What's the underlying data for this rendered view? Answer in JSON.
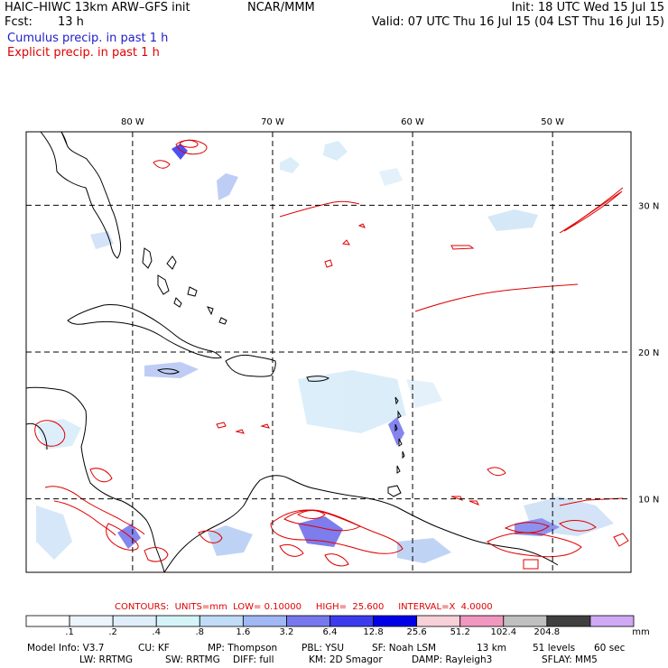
{
  "header": {
    "title_left": "HAIC–HIWC 13km ARW–GFS init",
    "title_org": "NCAR/MMM",
    "init": "Init: 18 UTC Wed 15 Jul 15",
    "fcst_label": "Fcst:",
    "fcst_value": "13 h",
    "valid": "Valid: 07 UTC Thu 16 Jul 15 (04 LST Thu 16 Jul 15)",
    "cumulus_legend": "Cumulus precip. in past 1 h",
    "explicit_legend": "Explicit precip. in past 1 h"
  },
  "map": {
    "lon_labels": [
      "80 W",
      "70 W",
      "60 W",
      "50 W"
    ],
    "lat_labels": [
      "30 N",
      "20 N",
      "10 N"
    ],
    "lon_values": [
      -80,
      -70,
      -60,
      -50
    ],
    "lat_values": [
      30,
      20,
      10
    ],
    "extent": {
      "west": -87.6,
      "east": -44.4,
      "south": 5,
      "north": 35
    },
    "colors": {
      "coast": "#000000",
      "grid": "#000000",
      "explicit": "#e00000"
    }
  },
  "contours": {
    "text": "CONTOURS:  UNITS=mm  LOW= 0.10000     HIGH=  25.600     INTERVAL=X  4.0000"
  },
  "colorbar": {
    "labels": [
      ".1",
      ".2",
      ".4",
      ".8",
      "1.6",
      "3.2",
      "6.4",
      "12.8",
      "25.6",
      "51.2",
      "102.4",
      "204.8"
    ],
    "units": "mm",
    "colors": [
      "#ffffff",
      "#ecf4fc",
      "#e0eefa",
      "#d4f4f8",
      "#c0dcf6",
      "#a0b8f4",
      "#7878ee",
      "#3c3cee",
      "#0000e8",
      "#f8d0d8",
      "#f098c0",
      "#c0c0c0",
      "#404040",
      "#d0a8f4"
    ]
  },
  "footer": {
    "line1": [
      {
        "label": "Model Info: V3.7"
      },
      {
        "label": "CU: KF"
      },
      {
        "label": "MP: Thompson"
      },
      {
        "label": "PBL: YSU"
      },
      {
        "label": "SF: Noah LSM"
      },
      {
        "label": "13 km"
      },
      {
        "label": "51 levels"
      },
      {
        "label": "60 sec"
      }
    ],
    "line2": [
      {
        "label": "LW: RRTMG"
      },
      {
        "label": "SW: RRTMG"
      },
      {
        "label": "DIFF: full"
      },
      {
        "label": "KM: 2D Smagor"
      },
      {
        "label": "DAMP: Rayleigh3"
      },
      {
        "label": "SFLAY: MM5"
      }
    ]
  }
}
